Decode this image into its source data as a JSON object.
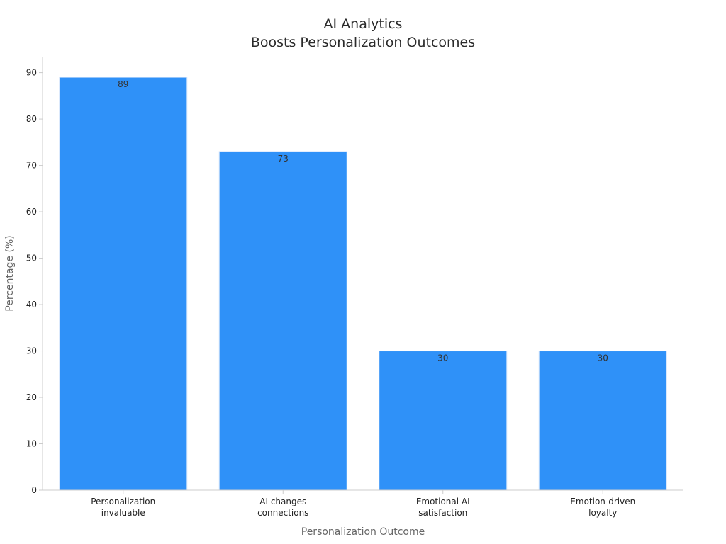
{
  "chart_data": {
    "type": "bar",
    "title_lines": [
      "AI Analytics",
      "Boosts Personalization Outcomes"
    ],
    "xlabel": "Personalization Outcome",
    "ylabel": "Percentage (%)",
    "categories": [
      [
        "Personalization",
        "invaluable"
      ],
      [
        "AI changes",
        "connections"
      ],
      [
        "Emotional AI",
        "satisfaction"
      ],
      [
        "Emotion-driven",
        "loyalty"
      ]
    ],
    "values": [
      89,
      73,
      30,
      30
    ],
    "data_labels": [
      "89",
      "73",
      "30",
      "30"
    ],
    "ylim": [
      0,
      93.45
    ],
    "yticks": [
      0,
      10,
      20,
      30,
      40,
      50,
      60,
      70,
      80,
      90
    ],
    "ytick_labels": [
      "0",
      "10",
      "20",
      "30",
      "40",
      "50",
      "60",
      "70",
      "80",
      "90"
    ],
    "grid": false,
    "legend": "none",
    "colors": {
      "bar": "#2f91f8",
      "bar_edge": "#cfe2fb",
      "axis": "#cccccc",
      "tick_text": "#222222",
      "label_text": "#666666",
      "data_label_text": "#333333"
    }
  }
}
